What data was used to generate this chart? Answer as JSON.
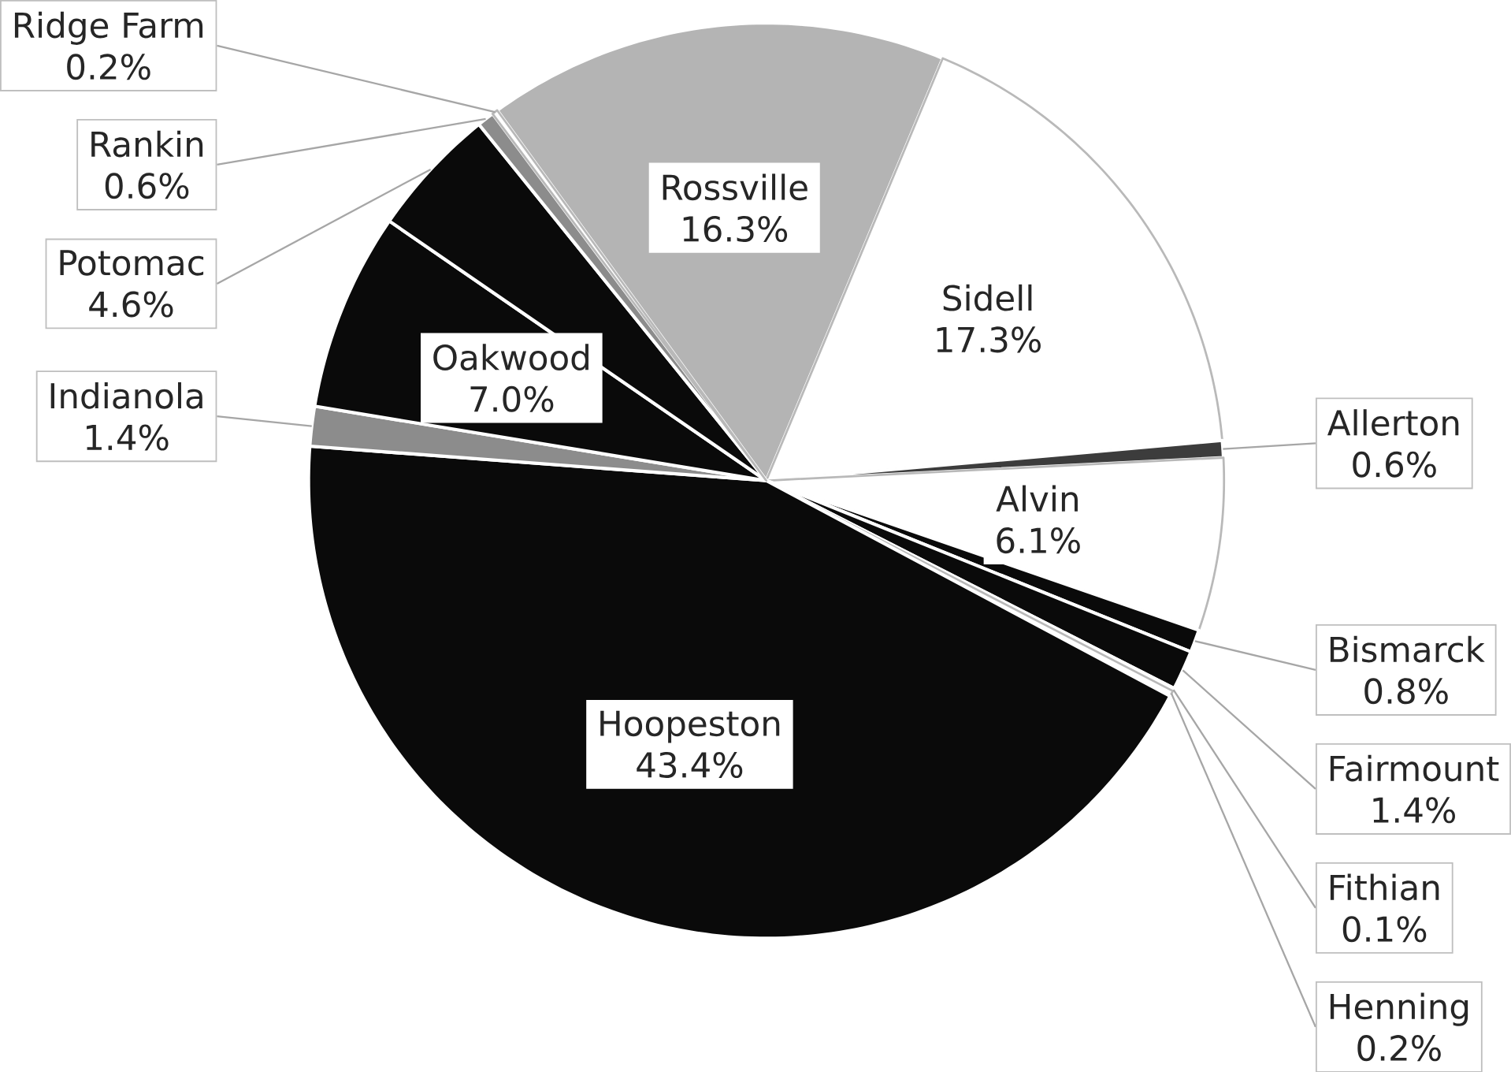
{
  "chart_data": {
    "type": "pie",
    "categories": [
      "Rossville",
      "Sidell",
      "Allerton",
      "Alvin",
      "Bismarck",
      "Fairmount",
      "Fithian",
      "Henning",
      "Hoopeston",
      "Indianola",
      "Oakwood",
      "Potomac",
      "Rankin",
      "Ridge Farm"
    ],
    "values": [
      16.3,
      17.3,
      0.6,
      6.1,
      0.8,
      1.4,
      0.1,
      0.2,
      43.4,
      1.4,
      7.0,
      4.6,
      0.6,
      0.2
    ],
    "value_labels": [
      "16.3%",
      "17.3%",
      "0.6%",
      "6.1%",
      "0.8%",
      "1.4%",
      "0.1%",
      "0.2%",
      "43.4%",
      "1.4%",
      "7.0%",
      "4.6%",
      "0.6%",
      "0.2%"
    ],
    "colors": [
      "#b4b4b4",
      "#ffffff",
      "#3c3c3c",
      "#ffffff",
      "#0a0a0a",
      "#0a0a0a",
      "#8c8c8c",
      "#ffffff",
      "#0a0a0a",
      "#8c8c8c",
      "#0a0a0a",
      "#0a0a0a",
      "#8c8c8c",
      "#ffffff"
    ]
  }
}
